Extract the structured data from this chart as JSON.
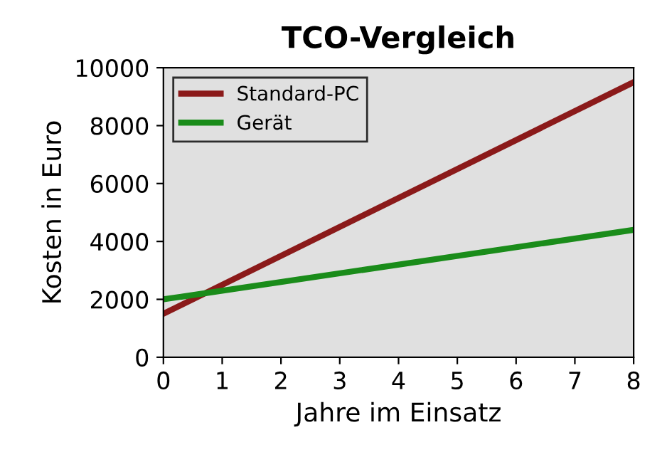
{
  "chart_data": {
    "type": "line",
    "title": "TCO-Vergleich",
    "xlabel": "Jahre im Einsatz",
    "ylabel": "Kosten in Euro",
    "x": [
      0,
      8
    ],
    "series": [
      {
        "name": "Standard-PC",
        "color": "#8b1a1a",
        "values": [
          1500,
          9500
        ]
      },
      {
        "name": "Gerät",
        "color": "#1a8c1a",
        "values": [
          2000,
          4400
        ]
      }
    ],
    "xlim": [
      0,
      8
    ],
    "xticks": [
      0,
      1,
      2,
      3,
      4,
      5,
      6,
      7,
      8
    ],
    "ylim": [
      0,
      10000
    ],
    "yticks": [
      0,
      2000,
      4000,
      6000,
      8000,
      10000
    ],
    "grid": false,
    "legend": "top left",
    "marker": "none",
    "line_style": "solid"
  }
}
